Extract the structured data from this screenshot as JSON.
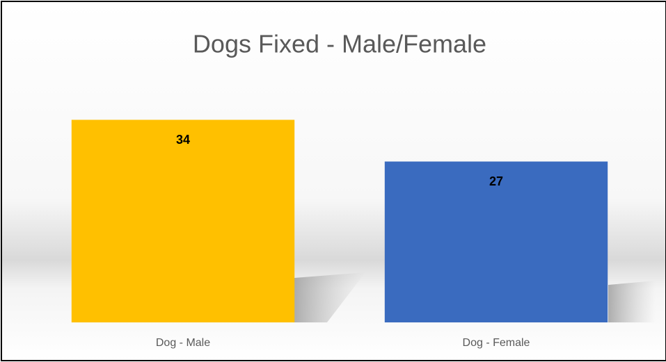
{
  "chart_data": {
    "type": "bar",
    "title": "Dogs Fixed - Male/Female",
    "categories": [
      "Dog - Male",
      "Dog - Female"
    ],
    "values": [
      34,
      27
    ],
    "colors": [
      "#ffc000",
      "#3a6bbf"
    ],
    "ylim": [
      0,
      40
    ]
  }
}
